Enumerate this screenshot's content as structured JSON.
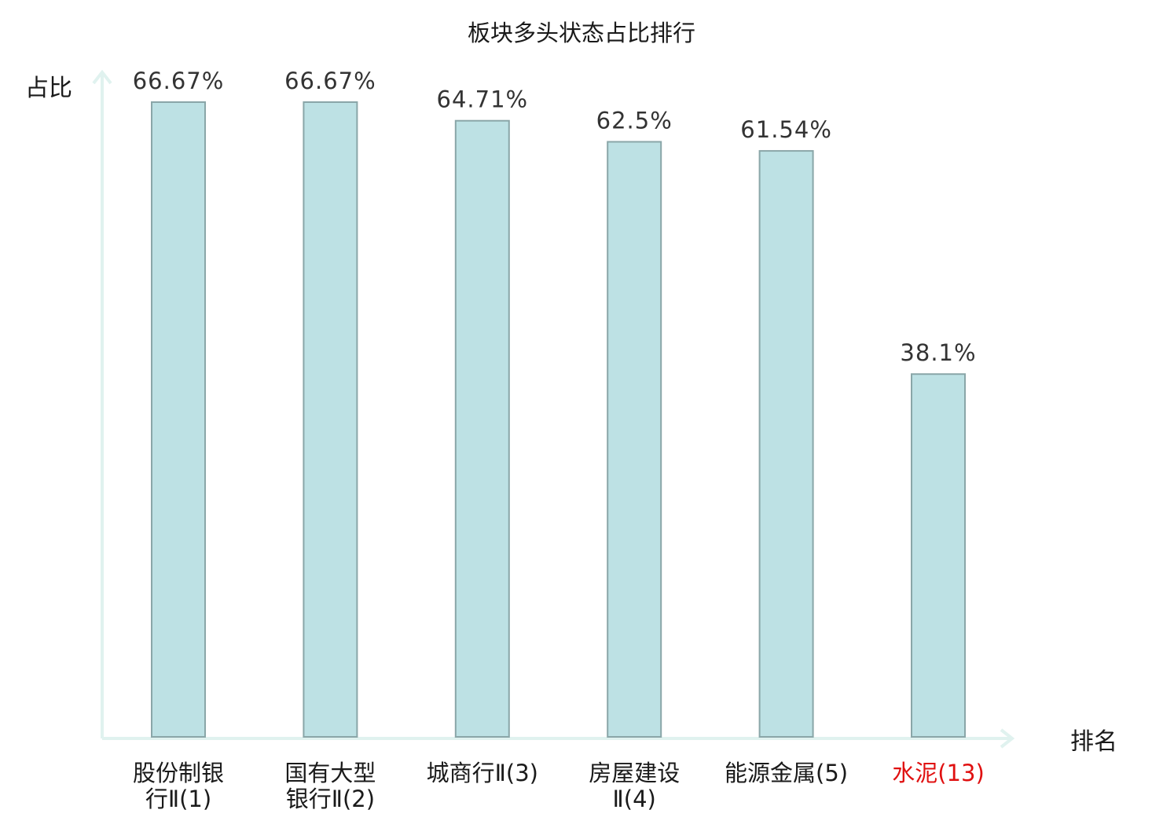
{
  "chart_data": {
    "type": "bar",
    "title": "板块多头状态占比排行",
    "ylabel": "占比",
    "xlabel": "排名",
    "ylim": [
      0,
      70
    ],
    "grid": false,
    "legend": "none",
    "categories": [
      {
        "lines": [
          "股份制银",
          "行Ⅱ(1)"
        ],
        "highlight": false
      },
      {
        "lines": [
          "国有大型",
          "银行Ⅱ(2)"
        ],
        "highlight": false
      },
      {
        "lines": [
          "城商行Ⅱ(3)"
        ],
        "highlight": false
      },
      {
        "lines": [
          "房屋建设",
          "Ⅱ(4)"
        ],
        "highlight": false
      },
      {
        "lines": [
          "能源金属(5)"
        ],
        "highlight": false
      },
      {
        "lines": [
          "水泥(13)"
        ],
        "highlight": true
      }
    ],
    "values": [
      66.67,
      66.67,
      64.71,
      62.5,
      61.54,
      38.1
    ],
    "value_labels": [
      "66.67%",
      "66.67%",
      "64.71%",
      "62.5%",
      "61.54%",
      "38.1%"
    ],
    "colors": {
      "bar_fill": "#bde1e4",
      "bar_stroke": "#8aa6a8",
      "axis": "#e0f2ef",
      "category_text": "#1a1a1a",
      "highlight_text": "#e01010"
    }
  }
}
